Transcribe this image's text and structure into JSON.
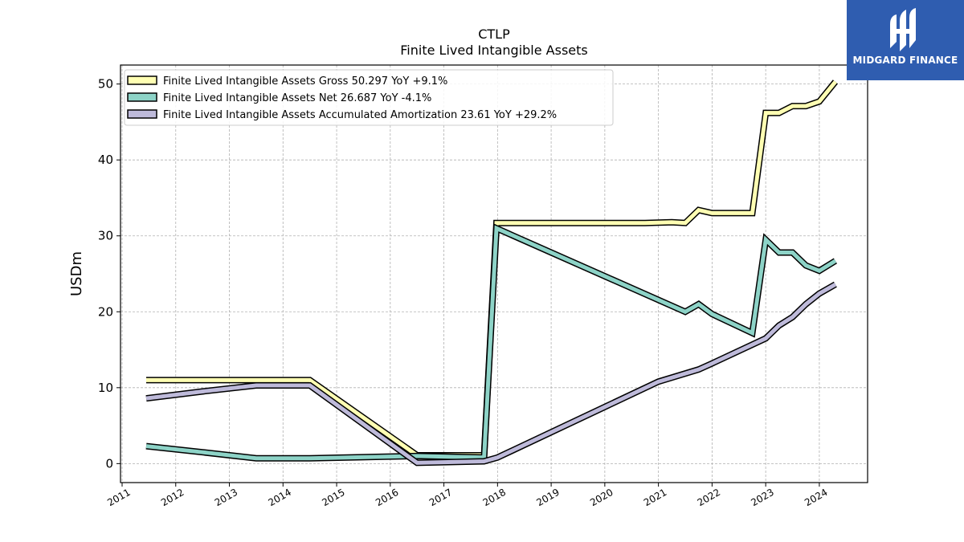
{
  "chart_data": {
    "type": "line",
    "title": "CTLP",
    "subtitle": "Finite Lived Intangible Assets",
    "ylabel": "USDm",
    "xlabel": "",
    "ylim": [
      -2.5,
      52.5
    ],
    "xlim": [
      2010.97,
      2024.9
    ],
    "yticks": [
      0,
      10,
      20,
      30,
      40,
      50
    ],
    "xticks": [
      "2011",
      "2012",
      "2013",
      "2014",
      "2015",
      "2016",
      "2017",
      "2018",
      "2019",
      "2020",
      "2021",
      "2022",
      "2023",
      "2024"
    ],
    "grid": true,
    "legend_position": "top-left",
    "series": [
      {
        "name": "Finite Lived Intangible Assets Gross",
        "legend_label": "Finite Lived Intangible Assets Gross  50.297 YoY +9.1%",
        "color": "#ffffb3",
        "points": [
          [
            2011.45,
            11.0
          ],
          [
            2014.5,
            11.0
          ],
          [
            2016.5,
            1.1
          ],
          [
            2017.75,
            1.1
          ],
          [
            2017.98,
            31.7
          ],
          [
            2020.75,
            31.7
          ],
          [
            2021.25,
            31.8
          ],
          [
            2021.5,
            31.7
          ],
          [
            2021.75,
            33.4
          ],
          [
            2022.0,
            33.0
          ],
          [
            2022.75,
            33.0
          ],
          [
            2023.0,
            46.2
          ],
          [
            2023.25,
            46.2
          ],
          [
            2023.5,
            47.1
          ],
          [
            2023.75,
            47.1
          ],
          [
            2024.0,
            47.7
          ],
          [
            2024.3,
            50.3
          ]
        ]
      },
      {
        "name": "Finite Lived Intangible Assets Net",
        "legend_label": "Finite Lived Intangible Assets Net  26.687 YoY -4.1%",
        "color": "#8dd3c7",
        "points": [
          [
            2011.45,
            2.3
          ],
          [
            2012.5,
            1.5
          ],
          [
            2013.5,
            0.7
          ],
          [
            2014.5,
            0.7
          ],
          [
            2016.5,
            1.0
          ],
          [
            2017.75,
            0.8
          ],
          [
            2017.98,
            31.0
          ],
          [
            2021.5,
            20.0
          ],
          [
            2021.75,
            21.0
          ],
          [
            2022.0,
            19.7
          ],
          [
            2022.75,
            17.2
          ],
          [
            2023.0,
            29.5
          ],
          [
            2023.25,
            27.8
          ],
          [
            2023.5,
            27.8
          ],
          [
            2023.75,
            26.1
          ],
          [
            2024.0,
            25.4
          ],
          [
            2024.3,
            26.7
          ]
        ]
      },
      {
        "name": "Finite Lived Intangible Assets Accumulated Amortization",
        "legend_label": "Finite Lived Intangible Assets Accumulated Amortization  23.61 YoY +29.2%",
        "color": "#bebada",
        "points": [
          [
            2011.45,
            8.6
          ],
          [
            2012.5,
            9.5
          ],
          [
            2013.5,
            10.3
          ],
          [
            2014.5,
            10.3
          ],
          [
            2016.5,
            0.1
          ],
          [
            2017.75,
            0.3
          ],
          [
            2018.0,
            0.8
          ],
          [
            2021.0,
            10.8
          ],
          [
            2021.75,
            12.4
          ],
          [
            2022.0,
            13.2
          ],
          [
            2023.0,
            16.5
          ],
          [
            2023.25,
            18.2
          ],
          [
            2023.5,
            19.3
          ],
          [
            2023.75,
            21.0
          ],
          [
            2024.0,
            22.4
          ],
          [
            2024.3,
            23.6
          ]
        ]
      }
    ]
  },
  "brand": {
    "name": "MIDGARD FINANCE",
    "background": "#2f5db0",
    "icon": "midgard-logo-icon"
  }
}
